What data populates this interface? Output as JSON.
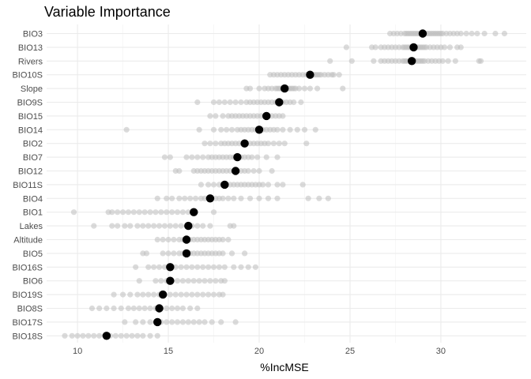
{
  "chart_data": {
    "type": "scatter",
    "title": "Variable Importance",
    "xlabel": "%IncMSE",
    "ylabel": "",
    "xlim": [
      8.3,
      34.7
    ],
    "x_ticks": [
      10,
      15,
      20,
      25,
      30
    ],
    "grid": true,
    "legend": "none",
    "colors": {
      "replicates": "#bebebe",
      "mean": "#000000",
      "grid": "#ebebeb",
      "text": "#4d4d4d"
    },
    "categories": [
      "BIO3",
      "BIO13",
      "Rivers",
      "BIO10S",
      "Slope",
      "BIO9S",
      "BIO15",
      "BIO14",
      "BIO2",
      "BIO7",
      "BIO12",
      "BIO11S",
      "BIO4",
      "BIO1",
      "Lakes",
      "Altitude",
      "BIO5",
      "BIO16S",
      "BIO6",
      "BIO19S",
      "BIO8S",
      "BIO17S",
      "BIO18S"
    ],
    "series": [
      {
        "category": "BIO3",
        "mean": 29.0,
        "replicates": [
          27.2,
          27.4,
          27.6,
          27.8,
          28.0,
          28.1,
          28.2,
          28.3,
          28.4,
          28.5,
          28.6,
          28.7,
          28.8,
          28.9,
          29.0,
          29.1,
          29.2,
          29.3,
          29.4,
          29.5,
          29.6,
          29.7,
          29.8,
          29.9,
          30.0,
          30.1,
          30.3,
          30.5,
          30.7,
          30.9,
          31.1,
          31.4,
          31.7,
          32.0,
          32.4,
          33.0,
          33.5
        ]
      },
      {
        "category": "BIO13",
        "mean": 28.5,
        "replicates": [
          24.8,
          26.2,
          26.4,
          26.7,
          26.9,
          27.1,
          27.3,
          27.5,
          27.7,
          27.9,
          28.0,
          28.1,
          28.2,
          28.3,
          28.4,
          28.5,
          28.6,
          28.7,
          28.8,
          28.9,
          29.0,
          29.1,
          29.2,
          29.4,
          29.6,
          29.8,
          30.0,
          30.2,
          30.5,
          30.9,
          31.1
        ]
      },
      {
        "category": "Rivers",
        "mean": 28.4,
        "replicates": [
          23.9,
          25.1,
          26.3,
          26.7,
          26.9,
          27.1,
          27.3,
          27.5,
          27.7,
          27.9,
          28.0,
          28.1,
          28.2,
          28.3,
          28.4,
          28.5,
          28.6,
          28.7,
          28.8,
          28.9,
          29.0,
          29.1,
          29.3,
          29.5,
          29.7,
          29.9,
          30.1,
          30.4,
          30.8,
          32.1,
          32.2
        ]
      },
      {
        "category": "BIO10S",
        "mean": 22.8,
        "replicates": [
          20.6,
          20.8,
          21.0,
          21.2,
          21.4,
          21.6,
          21.8,
          22.0,
          22.2,
          22.4,
          22.6,
          22.8,
          23.0,
          23.1,
          23.2,
          23.3,
          23.4,
          23.6,
          23.8,
          24.0,
          24.1,
          24.4
        ]
      },
      {
        "category": "Slope",
        "mean": 21.4,
        "replicates": [
          19.3,
          19.5,
          20.0,
          20.3,
          20.5,
          20.7,
          20.9,
          21.0,
          21.1,
          21.2,
          21.3,
          21.4,
          21.5,
          21.6,
          21.7,
          21.8,
          21.9,
          22.0,
          22.2,
          22.5,
          22.8,
          23.2,
          24.6
        ]
      },
      {
        "category": "BIO9S",
        "mean": 21.1,
        "replicates": [
          16.6,
          17.5,
          17.8,
          18.1,
          18.4,
          18.7,
          19.0,
          19.3,
          19.5,
          19.7,
          19.9,
          20.1,
          20.3,
          20.5,
          20.7,
          20.9,
          21.0,
          21.1,
          21.2,
          21.3,
          21.5,
          21.7,
          21.9,
          22.3
        ]
      },
      {
        "category": "BIO15",
        "mean": 20.4,
        "replicates": [
          17.3,
          17.6,
          18.0,
          18.3,
          18.5,
          18.7,
          18.9,
          19.1,
          19.3,
          19.5,
          19.7,
          19.9,
          20.1,
          20.3,
          20.5,
          20.7,
          20.9,
          21.1,
          21.3
        ]
      },
      {
        "category": "BIO14",
        "mean": 20.0,
        "replicates": [
          12.7,
          16.7,
          17.5,
          17.9,
          18.2,
          18.5,
          18.8,
          19.0,
          19.2,
          19.4,
          19.6,
          19.8,
          20.0,
          20.2,
          20.4,
          20.6,
          20.8,
          21.0,
          21.3,
          21.7,
          22.1,
          22.5,
          23.1
        ]
      },
      {
        "category": "BIO2",
        "mean": 19.2,
        "replicates": [
          17.0,
          17.3,
          17.6,
          17.9,
          18.1,
          18.3,
          18.5,
          18.7,
          18.9,
          19.1,
          19.3,
          19.5,
          19.7,
          19.9,
          20.1,
          20.3,
          20.5,
          20.8,
          21.1,
          21.4,
          22.6
        ]
      },
      {
        "category": "BIO7",
        "mean": 18.8,
        "replicates": [
          14.8,
          15.1,
          16.0,
          16.3,
          16.6,
          16.9,
          17.2,
          17.4,
          17.6,
          17.8,
          18.0,
          18.2,
          18.4,
          18.6,
          18.8,
          19.0,
          19.2,
          19.4,
          19.6,
          19.9,
          20.4,
          21.0
        ]
      },
      {
        "category": "BIO12",
        "mean": 18.7,
        "replicates": [
          15.4,
          15.6,
          16.4,
          16.6,
          16.8,
          17.0,
          17.2,
          17.4,
          17.6,
          17.8,
          18.0,
          18.2,
          18.4,
          18.6,
          18.8,
          19.0,
          19.2,
          19.4,
          19.7,
          20.0,
          20.7
        ]
      },
      {
        "category": "BIO11S",
        "mean": 18.1,
        "replicates": [
          16.8,
          17.2,
          17.5,
          17.8,
          18.0,
          18.2,
          18.4,
          18.6,
          18.8,
          19.0,
          19.2,
          19.4,
          19.6,
          19.8,
          20.0,
          20.2,
          20.5,
          21.0,
          21.3,
          22.4
        ]
      },
      {
        "category": "BIO4",
        "mean": 17.3,
        "replicates": [
          14.4,
          14.9,
          15.2,
          15.6,
          15.9,
          16.2,
          16.5,
          16.8,
          17.0,
          17.2,
          17.4,
          17.6,
          17.8,
          18.0,
          18.3,
          18.6,
          19.0,
          19.5,
          20.0,
          20.5,
          21.0,
          22.7,
          23.3,
          23.8
        ]
      },
      {
        "category": "BIO1",
        "mean": 16.4,
        "replicates": [
          9.8,
          11.7,
          11.9,
          12.2,
          12.5,
          12.8,
          13.1,
          13.4,
          13.7,
          14.0,
          14.3,
          14.6,
          14.9,
          15.2,
          15.5,
          15.8,
          16.1,
          16.5,
          17.5
        ]
      },
      {
        "category": "Lakes",
        "mean": 16.1,
        "replicates": [
          10.9,
          11.9,
          12.2,
          12.6,
          12.9,
          13.3,
          13.6,
          13.9,
          14.2,
          14.5,
          14.8,
          15.1,
          15.4,
          15.7,
          16.0,
          16.3,
          16.6,
          16.9,
          17.3,
          18.4,
          18.6
        ]
      },
      {
        "category": "Altitude",
        "mean": 16.0,
        "replicates": [
          14.4,
          14.7,
          15.0,
          15.3,
          15.6,
          15.8,
          16.0,
          16.2,
          16.4,
          16.6,
          16.8,
          17.0,
          17.2,
          17.4,
          17.6,
          17.8,
          18.0,
          18.3
        ]
      },
      {
        "category": "BIO5",
        "mean": 16.0,
        "replicates": [
          13.6,
          13.8,
          14.7,
          15.0,
          15.3,
          15.6,
          15.8,
          16.0,
          16.2,
          16.4,
          16.6,
          16.8,
          17.0,
          17.2,
          17.4,
          17.6,
          17.8,
          18.0,
          18.5,
          19.2
        ]
      },
      {
        "category": "BIO16S",
        "mean": 15.1,
        "replicates": [
          13.2,
          13.9,
          14.2,
          14.5,
          14.8,
          15.1,
          15.4,
          15.7,
          16.0,
          16.3,
          16.6,
          16.9,
          17.2,
          17.5,
          17.8,
          18.1,
          18.6,
          19.0,
          19.4,
          19.8
        ]
      },
      {
        "category": "BIO6",
        "mean": 15.1,
        "replicates": [
          13.4,
          14.3,
          14.6,
          14.9,
          15.2,
          15.5,
          15.8,
          16.1,
          16.4,
          16.7,
          17.0,
          17.3,
          17.6,
          17.9,
          18.1
        ]
      },
      {
        "category": "BIO19S",
        "mean": 14.7,
        "replicates": [
          12.0,
          12.5,
          12.9,
          13.3,
          13.6,
          13.9,
          14.2,
          14.5,
          14.8,
          15.1,
          15.4,
          15.7,
          16.0,
          16.3,
          16.6,
          16.9,
          17.2,
          17.5,
          17.8,
          18.0
        ]
      },
      {
        "category": "BIO8S",
        "mean": 14.5,
        "replicates": [
          10.8,
          11.2,
          11.6,
          12.0,
          12.4,
          12.8,
          13.1,
          13.4,
          13.7,
          14.0,
          14.3,
          14.6,
          14.9,
          15.2,
          15.5,
          15.8,
          16.2,
          16.6
        ]
      },
      {
        "category": "BIO17S",
        "mean": 14.4,
        "replicates": [
          12.6,
          13.2,
          13.6,
          14.0,
          14.3,
          14.6,
          14.9,
          15.2,
          15.5,
          15.8,
          16.1,
          16.4,
          16.7,
          17.0,
          17.4,
          17.9,
          18.7
        ]
      },
      {
        "category": "BIO18S",
        "mean": 11.6,
        "replicates": [
          9.3,
          9.7,
          10.0,
          10.3,
          10.6,
          10.9,
          11.2,
          11.5,
          11.8,
          12.1,
          12.4,
          12.7,
          13.0,
          13.3,
          13.6,
          14.0,
          14.4
        ]
      }
    ]
  }
}
